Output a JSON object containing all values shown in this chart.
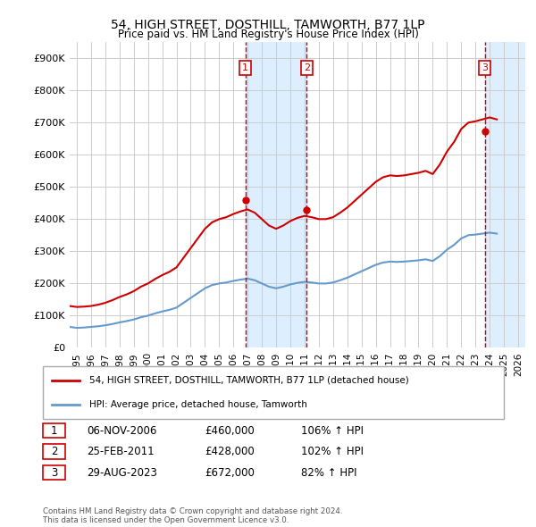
{
  "title": "54, HIGH STREET, DOSTHILL, TAMWORTH, B77 1LP",
  "subtitle": "Price paid vs. HM Land Registry's House Price Index (HPI)",
  "ylim": [
    0,
    950000
  ],
  "yticks": [
    0,
    100000,
    200000,
    300000,
    400000,
    500000,
    600000,
    700000,
    800000,
    900000
  ],
  "ytick_labels": [
    "£0",
    "£100K",
    "£200K",
    "£300K",
    "£400K",
    "£500K",
    "£600K",
    "£700K",
    "£800K",
    "£900K"
  ],
  "xlim_start": 1994.5,
  "xlim_end": 2026.5,
  "xticks": [
    1995,
    1996,
    1997,
    1998,
    1999,
    2000,
    2001,
    2002,
    2003,
    2004,
    2005,
    2006,
    2007,
    2008,
    2009,
    2010,
    2011,
    2012,
    2013,
    2014,
    2015,
    2016,
    2017,
    2018,
    2019,
    2020,
    2021,
    2022,
    2023,
    2024,
    2025,
    2026
  ],
  "price_paid_color": "#cc0000",
  "hpi_color": "#6699cc",
  "grid_color": "#cccccc",
  "background_color": "#ffffff",
  "sale_marker_color": "#cc0000",
  "transactions": [
    {
      "num": "1",
      "date": 2006.85,
      "price": 460000,
      "x_line": 2006.85
    },
    {
      "num": "2",
      "date": 2011.15,
      "price": 428000,
      "x_line": 2011.15
    },
    {
      "num": "3",
      "date": 2023.65,
      "price": 672000,
      "x_line": 2023.65
    }
  ],
  "hpi_data_x": [
    1994.5,
    1995.0,
    1995.5,
    1996.0,
    1996.5,
    1997.0,
    1997.5,
    1998.0,
    1998.5,
    1999.0,
    1999.5,
    2000.0,
    2000.5,
    2001.0,
    2001.5,
    2002.0,
    2002.5,
    2003.0,
    2003.5,
    2004.0,
    2004.5,
    2005.0,
    2005.5,
    2006.0,
    2006.5,
    2007.0,
    2007.5,
    2008.0,
    2008.5,
    2009.0,
    2009.5,
    2010.0,
    2010.5,
    2011.0,
    2011.5,
    2012.0,
    2012.5,
    2013.0,
    2013.5,
    2014.0,
    2014.5,
    2015.0,
    2015.5,
    2016.0,
    2016.5,
    2017.0,
    2017.5,
    2018.0,
    2018.5,
    2019.0,
    2019.5,
    2020.0,
    2020.5,
    2021.0,
    2021.5,
    2022.0,
    2022.5,
    2023.0,
    2023.5,
    2024.0,
    2024.5
  ],
  "hpi_data_y": [
    65000,
    62000,
    63000,
    65000,
    67000,
    70000,
    74000,
    79000,
    83000,
    88000,
    95000,
    100000,
    107000,
    113000,
    118000,
    125000,
    140000,
    155000,
    170000,
    185000,
    195000,
    200000,
    203000,
    208000,
    212000,
    215000,
    210000,
    200000,
    190000,
    185000,
    190000,
    197000,
    202000,
    205000,
    203000,
    200000,
    200000,
    203000,
    210000,
    218000,
    228000,
    238000,
    248000,
    258000,
    265000,
    268000,
    267000,
    268000,
    270000,
    272000,
    275000,
    270000,
    285000,
    305000,
    320000,
    340000,
    350000,
    352000,
    355000,
    358000,
    355000
  ],
  "price_paid_x": [
    1994.5,
    1995.0,
    1995.5,
    1996.0,
    1996.5,
    1997.0,
    1997.5,
    1998.0,
    1998.5,
    1999.0,
    1999.5,
    2000.0,
    2000.5,
    2001.0,
    2001.5,
    2002.0,
    2002.5,
    2003.0,
    2003.5,
    2004.0,
    2004.5,
    2005.0,
    2005.5,
    2006.0,
    2006.5,
    2007.0,
    2007.5,
    2008.0,
    2008.5,
    2009.0,
    2009.5,
    2010.0,
    2010.5,
    2011.0,
    2011.5,
    2012.0,
    2012.5,
    2013.0,
    2013.5,
    2014.0,
    2014.5,
    2015.0,
    2015.5,
    2016.0,
    2016.5,
    2017.0,
    2017.5,
    2018.0,
    2018.5,
    2019.0,
    2019.5,
    2020.0,
    2020.5,
    2021.0,
    2021.5,
    2022.0,
    2022.5,
    2023.0,
    2023.5,
    2024.0,
    2024.5
  ],
  "price_paid_y": [
    130000,
    127000,
    128000,
    130000,
    134000,
    140000,
    148000,
    158000,
    166000,
    176000,
    190000,
    200000,
    214000,
    226000,
    236000,
    250000,
    280000,
    310000,
    340000,
    370000,
    390000,
    400000,
    406000,
    416000,
    424000,
    430000,
    420000,
    400000,
    380000,
    370000,
    380000,
    394000,
    404000,
    410000,
    406000,
    400000,
    400000,
    406000,
    420000,
    436000,
    456000,
    476000,
    496000,
    516000,
    530000,
    536000,
    534000,
    536000,
    540000,
    544000,
    550000,
    540000,
    570000,
    610000,
    640000,
    680000,
    700000,
    704000,
    710000,
    716000,
    710000
  ],
  "legend_line1": "54, HIGH STREET, DOSTHILL, TAMWORTH, B77 1LP (detached house)",
  "legend_line2": "HPI: Average price, detached house, Tamworth",
  "table_rows": [
    {
      "num": "1",
      "date": "06-NOV-2006",
      "price": "£460,000",
      "hpi": "106% ↑ HPI"
    },
    {
      "num": "2",
      "date": "25-FEB-2011",
      "price": "£428,000",
      "hpi": "102% ↑ HPI"
    },
    {
      "num": "3",
      "date": "29-AUG-2023",
      "price": "£672,000",
      "hpi": "82% ↑ HPI"
    }
  ],
  "footnote": "Contains HM Land Registry data © Crown copyright and database right 2024.\nThis data is licensed under the Open Government Licence v3.0.",
  "shaded_regions": [
    {
      "x_start": 2006.85,
      "x_end": 2011.15,
      "color": "#ddeeff"
    },
    {
      "x_start": 2023.65,
      "x_end": 2026.5,
      "color": "#ddeeff"
    }
  ]
}
